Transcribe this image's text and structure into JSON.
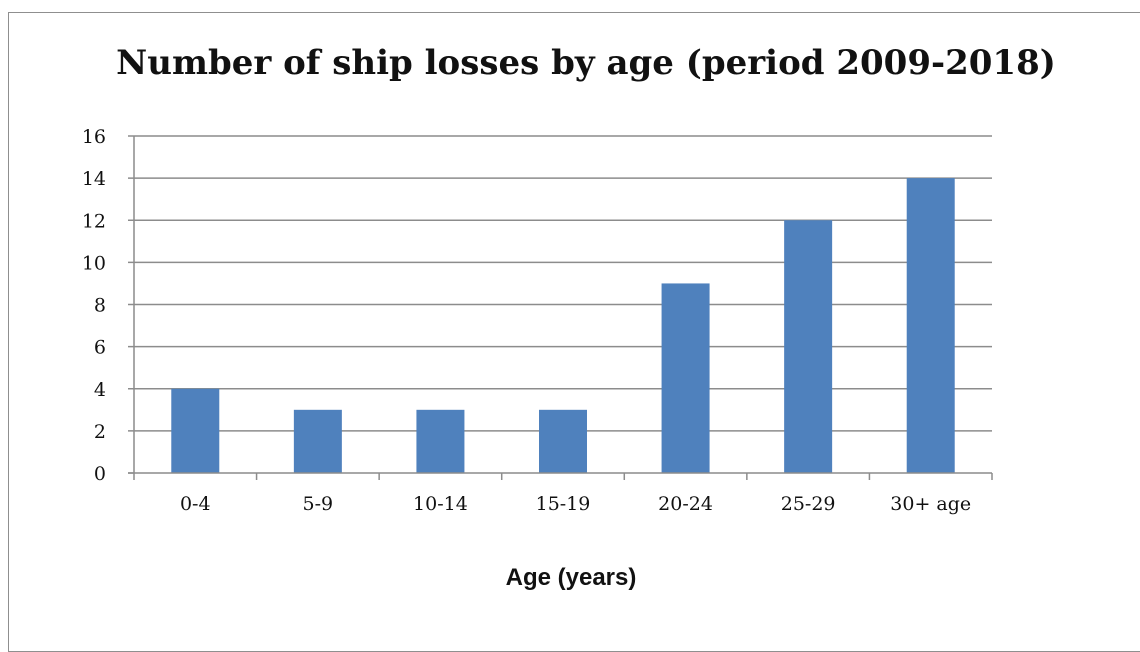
{
  "chart_data": {
    "type": "bar",
    "title": "Number of ship losses by age (period 2009-2018)",
    "xlabel": "Age (years)",
    "ylabel": "",
    "categories": [
      "0-4",
      "5-9",
      "10-14",
      "15-19",
      "20-24",
      "25-29",
      "30+ age"
    ],
    "values": [
      4,
      3,
      3,
      3,
      9,
      12,
      14
    ],
    "ylim": [
      0,
      16
    ],
    "yticks": [
      0,
      2,
      4,
      6,
      8,
      10,
      12,
      14,
      16
    ],
    "grid": true,
    "legend": "none",
    "bar_color": "#4f81bd",
    "grid_color": "#8c8c8c",
    "axis_color": "#8c8c8c"
  }
}
